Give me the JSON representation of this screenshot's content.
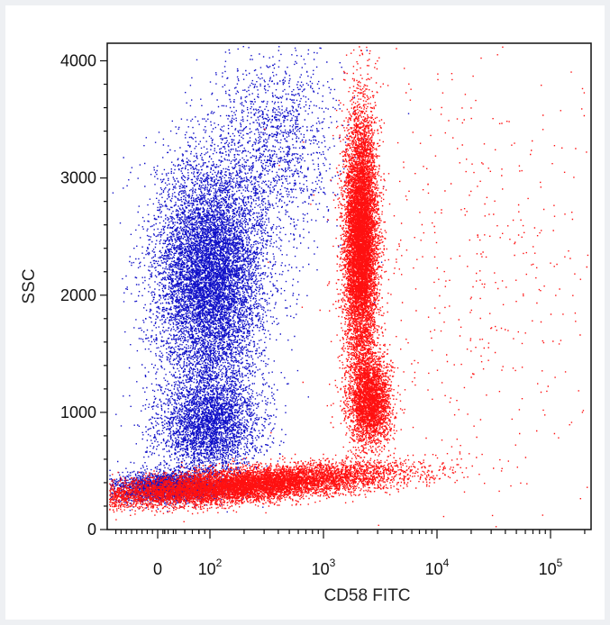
{
  "chart_data": {
    "type": "scatter",
    "title": "",
    "xlabel": "CD58 FITC",
    "ylabel": "SSC",
    "x_scale": "biexponential (linear near 0, log above)",
    "x_ticks": [
      {
        "value": 0,
        "label": "0"
      },
      {
        "value": 100,
        "label": "10",
        "exp": "2"
      },
      {
        "value": 1000,
        "label": "10",
        "exp": "3"
      },
      {
        "value": 10000,
        "label": "10",
        "exp": "4"
      },
      {
        "value": 100000,
        "label": "10",
        "exp": "5"
      }
    ],
    "y_ticks": [
      {
        "value": 0,
        "label": "0"
      },
      {
        "value": 1000,
        "label": "1000"
      },
      {
        "value": 2000,
        "label": "2000"
      },
      {
        "value": 3000,
        "label": "3000"
      },
      {
        "value": 4000,
        "label": "4000"
      }
    ],
    "xlim": [
      -40,
      250000
    ],
    "ylim": [
      0,
      4150
    ],
    "grid": false,
    "legend": "none",
    "series": [
      {
        "color": "#1010c8",
        "clusters": [
          {
            "x_center": 100,
            "y_center": 2150,
            "x_spread": "≈40–250",
            "y_spread": "≈1300–3300",
            "approx_events": 9000
          },
          {
            "x_center": 100,
            "y_center": 850,
            "x_spread": "≈40–250",
            "y_spread": "≈500–1300",
            "approx_events": 3500
          },
          {
            "x_center": 15,
            "y_center": 380,
            "x_spread": "≈-20–150",
            "y_spread": "≈250–550",
            "approx_events": 2500
          },
          {
            "x_center": 300,
            "y_center": 3000,
            "x_spread": "≈150–900",
            "y_spread": "≈1500–3900",
            "approx_events": 1500
          }
        ]
      },
      {
        "color": "#ff1010",
        "clusters": [
          {
            "x_center": 1900,
            "y_center": 2500,
            "x_spread": "≈1100–2900",
            "y_spread": "≈1300–3900",
            "approx_events": 9000
          },
          {
            "x_center": 2300,
            "y_center": 900,
            "x_spread": "≈1200–3500",
            "y_spread": "≈500–1300",
            "approx_events": 3000
          },
          {
            "x_center": 400,
            "y_center": 420,
            "x_spread": "≈-20–2000",
            "y_spread": "≈250–650",
            "approx_events": 9000
          },
          {
            "x_center": 10000,
            "y_center": 2000,
            "x_spread": "≈3000–200000",
            "y_spread": "≈300–3500",
            "approx_events": 500
          }
        ]
      }
    ]
  }
}
